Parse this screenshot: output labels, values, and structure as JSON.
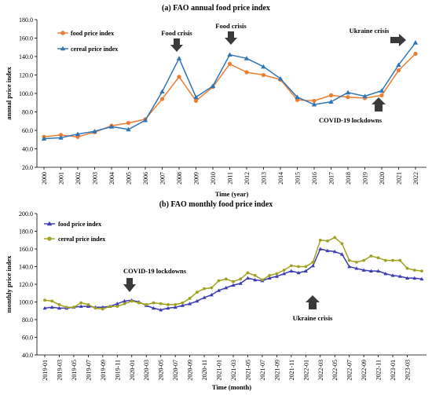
{
  "chart_data": [
    {
      "type": "line",
      "title": "(a) FAO annual food price index",
      "xlabel": "Time (year)",
      "ylabel": "annual price index",
      "ylim": [
        20,
        180
      ],
      "yticks": [
        "20.0",
        "40.0",
        "60.0",
        "80.0",
        "100.0",
        "120.0",
        "140.0",
        "160.0",
        "180.0"
      ],
      "grid": false,
      "legend": "top-left",
      "categories": [
        "2000",
        "2001",
        "2002",
        "2003",
        "2004",
        "2005",
        "2006",
        "2007",
        "2008",
        "2009",
        "2010",
        "2011",
        "2012",
        "2013",
        "2014",
        "2015",
        "2016",
        "2017",
        "2018",
        "2019",
        "2020",
        "2021",
        "2022"
      ],
      "series": [
        {
          "name": "food price index",
          "color": "#ED7D31",
          "marker": "circle",
          "values": [
            53,
            55,
            53,
            58,
            65,
            68,
            72,
            94,
            118,
            92,
            107,
            132,
            123,
            120,
            115,
            93,
            92,
            98,
            96,
            95,
            98,
            125,
            143
          ]
        },
        {
          "name": "cereal price index",
          "color": "#2E75B6",
          "marker": "triangle",
          "values": [
            51,
            52,
            56,
            59,
            64,
            61,
            71,
            102,
            138,
            96,
            108,
            142,
            138,
            129,
            116,
            96,
            88,
            91,
            101,
            97,
            103,
            131,
            155
          ]
        }
      ],
      "annotations": [
        {
          "text": "Food crisis",
          "at": "2008",
          "arrow": "down"
        },
        {
          "text": "Food crisis",
          "at": "2011",
          "arrow": "down"
        },
        {
          "text": "Ukraine crisis",
          "at": "2022",
          "arrow": "right"
        },
        {
          "text": "COVID-19 lockdowns",
          "at": "2020",
          "arrow": "up"
        }
      ]
    },
    {
      "type": "line",
      "title": "(b) FAO monthly food price index",
      "xlabel": "Time (month)",
      "ylabel": "monthly price index",
      "ylim": [
        40,
        200
      ],
      "yticks": [
        "40.0",
        "60.0",
        "80.0",
        "100.0",
        "120.0",
        "140.0",
        "160.0",
        "180.0",
        "200.0"
      ],
      "grid": false,
      "legend": "top-left",
      "x": [
        "2019-01",
        "2019-02",
        "2019-03",
        "2019-04",
        "2019-05",
        "2019-06",
        "2019-07",
        "2019-08",
        "2019-09",
        "2019-10",
        "2019-11",
        "2019-12",
        "2020-01",
        "2020-02",
        "2020-03",
        "2020-04",
        "2020-05",
        "2020-06",
        "2020-07",
        "2020-08",
        "2020-09",
        "2020-10",
        "2020-11",
        "2020-12",
        "2021-01",
        "2021-02",
        "2021-03",
        "2021-04",
        "2021-05",
        "2021-06",
        "2021-07",
        "2021-08",
        "2021-09",
        "2021-10",
        "2021-11",
        "2021-12",
        "2022-01",
        "2022-02",
        "2022-03",
        "2022-04",
        "2022-05",
        "2022-06",
        "2022-07",
        "2022-08",
        "2022-09",
        "2022-10",
        "2022-11",
        "2022-12",
        "2023-01",
        "2023-02",
        "2023-03",
        "2023-04",
        "2023-05"
      ],
      "xticklabels": [
        "2019-01",
        "2019-03",
        "2019-05",
        "2019-07",
        "2019-09",
        "2019-11",
        "2020-01",
        "2020-03",
        "2020-05",
        "2020-07",
        "2020-09",
        "2020-11",
        "2021-01",
        "2021-03",
        "2021-05",
        "2021-07",
        "2021-09",
        "2021-11",
        "2022-01",
        "2022-03",
        "2022-05",
        "2022-07",
        "2022-09",
        "2022-11",
        "2023-01",
        "2023-03"
      ],
      "series": [
        {
          "name": "food price index",
          "color": "#3C3CB4",
          "marker": "triangle",
          "values": [
            93,
            94,
            93,
            93,
            94,
            95,
            95,
            94,
            94,
            95,
            98,
            101,
            102,
            100,
            96,
            93,
            91,
            93,
            94,
            96,
            98,
            101,
            105,
            108,
            113,
            116,
            119,
            121,
            127,
            125,
            124,
            127,
            129,
            132,
            135,
            133,
            135,
            141,
            160,
            158,
            157,
            154,
            140,
            138,
            136,
            135,
            135,
            132,
            130,
            129,
            127,
            127,
            126
          ]
        },
        {
          "name": "cereal price index",
          "color": "#A0A020",
          "marker": "circle",
          "values": [
            102,
            101,
            97,
            94,
            94,
            99,
            97,
            93,
            92,
            95,
            95,
            98,
            101,
            99,
            97,
            99,
            98,
            97,
            97,
            99,
            104,
            111,
            115,
            116,
            124,
            126,
            123,
            126,
            133,
            130,
            125,
            130,
            132,
            136,
            141,
            140,
            140,
            145,
            170,
            169,
            173,
            166,
            147,
            145,
            147,
            152,
            150,
            147,
            147,
            147,
            138,
            136,
            135
          ]
        }
      ],
      "annotations": [
        {
          "text": "COVID-19 lockdowns",
          "at": "2020-01",
          "arrow": "down"
        },
        {
          "text": "Ukraine crisis",
          "at": "2022-02",
          "arrow": "up"
        }
      ]
    }
  ]
}
